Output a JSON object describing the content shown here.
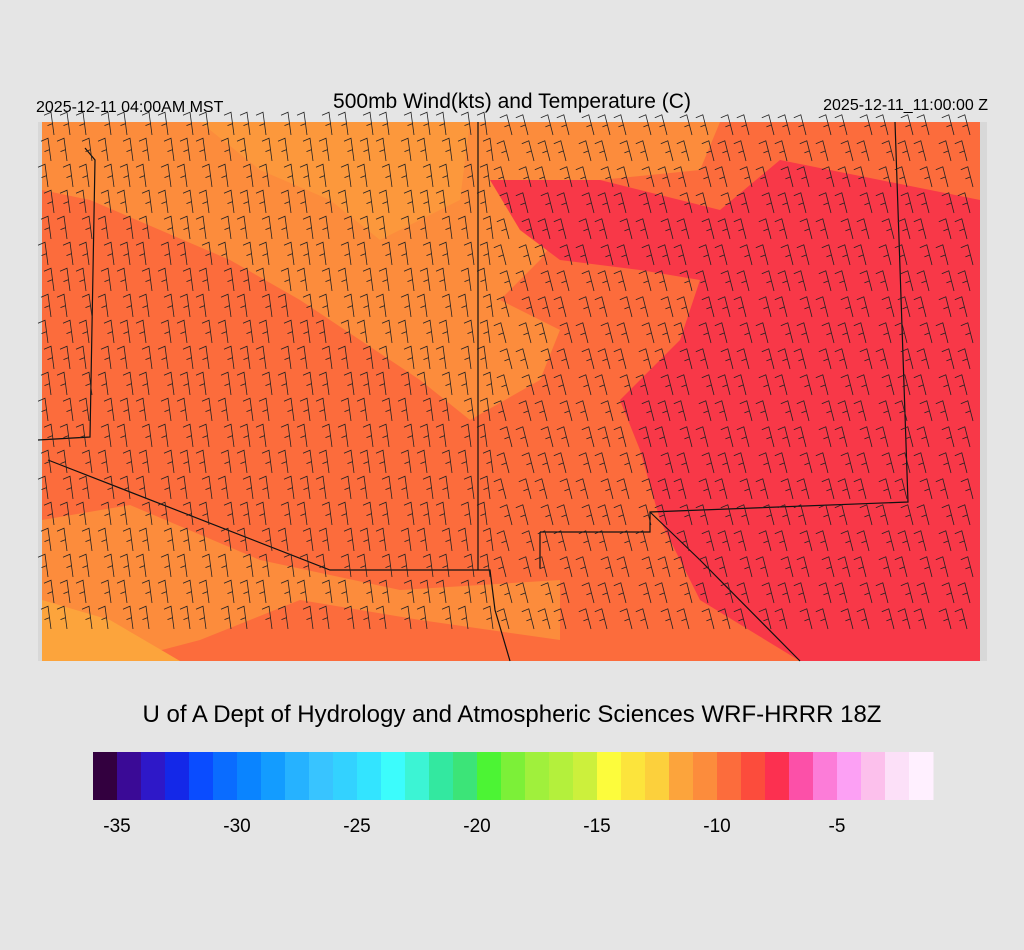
{
  "header": {
    "title": "500mb Wind(kts) and Temperature (C)",
    "valid_local": "2025-12-11 04:00AM MST",
    "valid_utc": "2025-12-11_11:00:00 Z"
  },
  "footer": {
    "credit": "U of A Dept of Hydrology and Atmospheric Sciences WRF-HRRR 18Z"
  },
  "colorbar": {
    "lim": [
      -36,
      -1
    ],
    "ticks": [
      -35,
      -30,
      -25,
      -20,
      -15,
      -10,
      -5
    ],
    "colors": [
      "#33003f",
      "#3a0a96",
      "#2e18c8",
      "#1428e8",
      "#0a4cff",
      "#0a6cff",
      "#0a84ff",
      "#139cff",
      "#26b2ff",
      "#38c4ff",
      "#33d2ff",
      "#33e4ff",
      "#3cfcfc",
      "#3cf4d4",
      "#33e8a0",
      "#3ce478",
      "#4cf434",
      "#7cf038",
      "#a0f03c",
      "#b4f03c",
      "#ccf03c",
      "#fcfc3c",
      "#fce43c",
      "#fcd03c",
      "#fca43c",
      "#fc8c3c",
      "#fc6c3c",
      "#fc4c3c",
      "#fc3050",
      "#fc50a8",
      "#fc7cd8",
      "#fca0f4",
      "#fcc0ec",
      "#fce0f8",
      "#fff0ff"
    ]
  }
}
